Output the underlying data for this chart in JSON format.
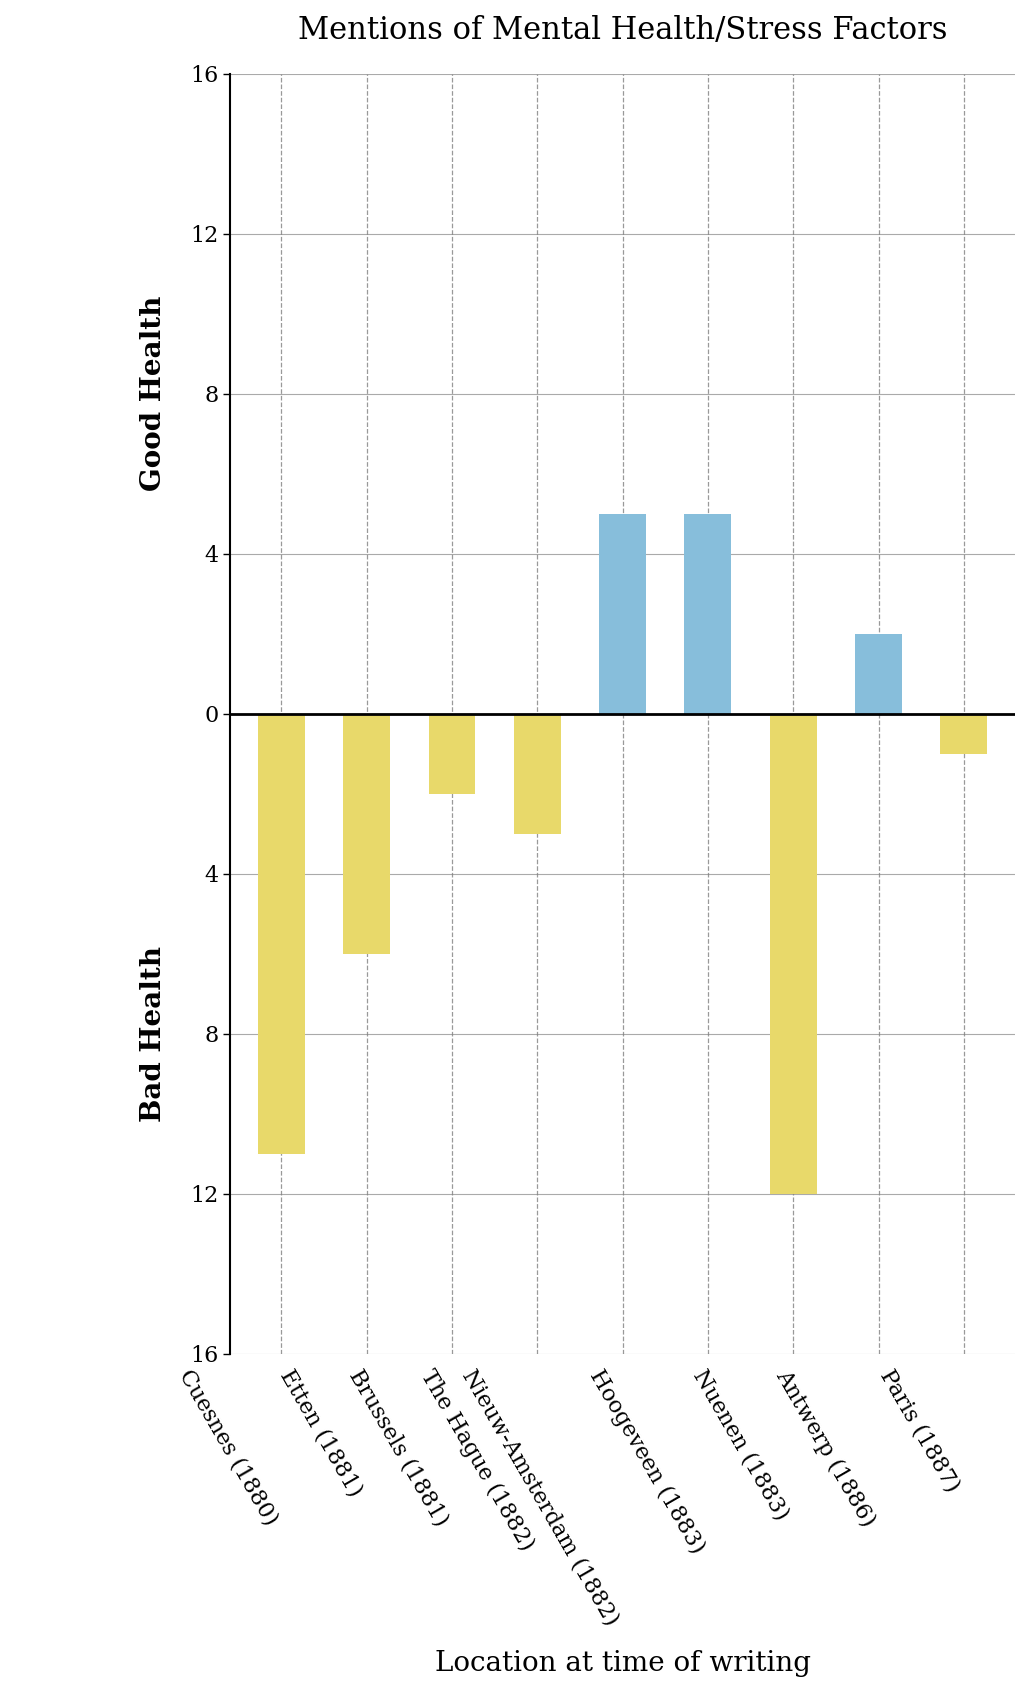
{
  "categories": [
    "Cuesnes (1880)",
    "Etten (1881)",
    "Brussels (1881)",
    "The Hague (1882)",
    "Nieuw-Amsterdam (1882)",
    "Hoogeveen (1883)",
    "Nuenen (1883)",
    "Antwerp (1886)",
    "Paris (1887)"
  ],
  "values": [
    -11,
    -6,
    -2,
    -3,
    5,
    5,
    -12,
    2,
    -1
  ],
  "bar_color_positive": "#87BEDB",
  "bar_color_negative": "#E8D96A",
  "title": "Mentions of Mental Health/Stress Factors",
  "xlabel": "Location at time of writing",
  "ylabel_top": "Good Health",
  "ylabel_bottom": "Bad Health",
  "ylim": [
    -16,
    16
  ],
  "yticks": [
    -16,
    -12,
    -8,
    -4,
    0,
    4,
    8,
    12,
    16
  ],
  "yticklabels": [
    "16",
    "12",
    "8",
    "4",
    "0",
    "4",
    "8",
    "12",
    "16"
  ],
  "background_color": "#ffffff",
  "title_fontsize": 22,
  "label_fontsize": 18,
  "tick_fontsize": 16,
  "xtick_fontsize": 16
}
